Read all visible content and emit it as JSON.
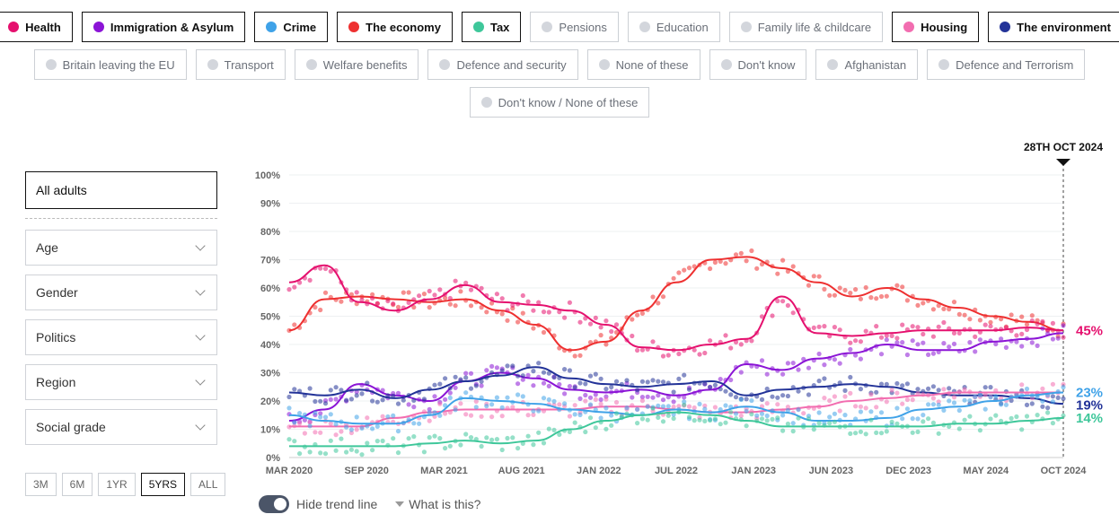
{
  "legend": {
    "row1": [
      {
        "label": "Health",
        "active": true,
        "color": "#e5106e"
      },
      {
        "label": "Immigration & Asylum",
        "active": true,
        "color": "#8b14d6"
      },
      {
        "label": "Crime",
        "active": true,
        "color": "#3fa2e8"
      },
      {
        "label": "The economy",
        "active": true,
        "color": "#ee3030"
      },
      {
        "label": "Tax",
        "active": true,
        "color": "#3ec79a"
      },
      {
        "label": "Pensions",
        "active": false
      },
      {
        "label": "Education",
        "active": false
      },
      {
        "label": "Family life & childcare",
        "active": false
      },
      {
        "label": "Housing",
        "active": true,
        "color": "#f26db0"
      },
      {
        "label": "The environment",
        "active": true,
        "color": "#233398"
      }
    ],
    "row2": [
      {
        "label": "Britain leaving the EU",
        "active": false
      },
      {
        "label": "Transport",
        "active": false
      },
      {
        "label": "Welfare benefits",
        "active": false
      },
      {
        "label": "Defence and security",
        "active": false
      },
      {
        "label": "None of these",
        "active": false
      },
      {
        "label": "Don't know",
        "active": false
      },
      {
        "label": "Afghanistan",
        "active": false
      },
      {
        "label": "Defence and Terrorism",
        "active": false
      }
    ],
    "row3": [
      {
        "label": "Don't know / None of these",
        "active": false
      }
    ]
  },
  "filters": {
    "audience": "All adults",
    "dropdowns": [
      "Age",
      "Gender",
      "Politics",
      "Region",
      "Social grade"
    ]
  },
  "range_buttons": [
    {
      "label": "3M",
      "active": false
    },
    {
      "label": "6M",
      "active": false
    },
    {
      "label": "1YR",
      "active": false
    },
    {
      "label": "5YRS",
      "active": true
    },
    {
      "label": "ALL",
      "active": false
    }
  ],
  "controls": {
    "trend_toggle_label": "Hide trend line",
    "what_label": "What is this?"
  },
  "chart_data": {
    "type": "line",
    "current_date_label": "28TH OCT 2024",
    "ylim": [
      0,
      100
    ],
    "y_ticks": [
      "0%",
      "10%",
      "20%",
      "30%",
      "40%",
      "50%",
      "60%",
      "70%",
      "80%",
      "90%",
      "100%"
    ],
    "x_ticks": [
      "MAR 2020",
      "SEP 2020",
      "MAR 2021",
      "AUG 2021",
      "JAN 2022",
      "JUL 2022",
      "JAN 2023",
      "JUN 2023",
      "DEC 2023",
      "MAY 2024",
      "OCT 2024"
    ],
    "series": [
      {
        "name": "The economy",
        "color": "#ee3030",
        "values": [
          45,
          56,
          57,
          56,
          55,
          56,
          52,
          47,
          38,
          41,
          52,
          62,
          70,
          71,
          67,
          62,
          57,
          60,
          56,
          53,
          50,
          48,
          45
        ]
      },
      {
        "name": "Health",
        "color": "#e5106e",
        "values": [
          62,
          68,
          55,
          52,
          56,
          61,
          55,
          54,
          52,
          47,
          39,
          38,
          40,
          42,
          57,
          44,
          43,
          44,
          45,
          45,
          45,
          46,
          45
        ]
      },
      {
        "name": "Immigration & Asylum",
        "color": "#8b14d6",
        "values": [
          13,
          17,
          26,
          22,
          20,
          27,
          30,
          28,
          24,
          23,
          24,
          22,
          24,
          33,
          31,
          35,
          37,
          40,
          38,
          38,
          41,
          42,
          44
        ]
      },
      {
        "name": "The environment",
        "color": "#233398",
        "values": [
          23,
          22,
          24,
          21,
          24,
          27,
          29,
          32,
          28,
          26,
          25,
          26,
          27,
          22,
          24,
          25,
          26,
          25,
          23,
          22,
          22,
          21,
          19
        ]
      },
      {
        "name": "Housing",
        "color": "#f26db0",
        "values": [
          11,
          11,
          11,
          14,
          16,
          17,
          17,
          17,
          17,
          18,
          18,
          17,
          16,
          16,
          17,
          18,
          20,
          21,
          22,
          23,
          23,
          23,
          23
        ]
      },
      {
        "name": "Crime",
        "color": "#3fa2e8",
        "values": [
          15,
          13,
          12,
          12,
          15,
          21,
          20,
          19,
          17,
          16,
          15,
          17,
          16,
          18,
          16,
          13,
          13,
          14,
          17,
          18,
          20,
          22,
          23
        ]
      },
      {
        "name": "Tax",
        "color": "#3ec79a",
        "values": [
          4,
          4,
          4,
          4,
          5,
          6,
          5,
          6,
          10,
          13,
          15,
          16,
          15,
          13,
          11,
          11,
          11,
          11,
          11,
          12,
          12,
          13,
          14
        ]
      }
    ],
    "end_labels": [
      {
        "text": "45%",
        "color": "#e5106e",
        "value": 45
      },
      {
        "text": "23%",
        "color": "#3fa2e8",
        "value": 23
      },
      {
        "text": "19%",
        "color": "#233398",
        "value": 19
      },
      {
        "text": "14%",
        "color": "#3ec79a",
        "value": 14
      }
    ]
  }
}
